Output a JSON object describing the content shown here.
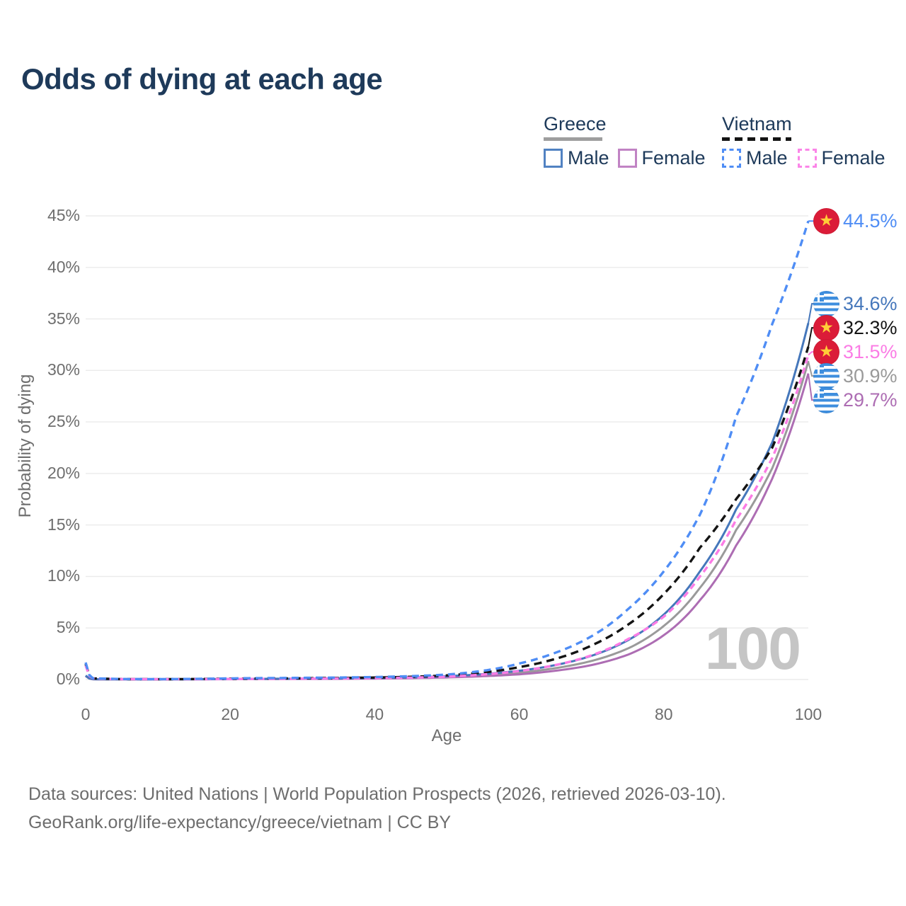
{
  "header": {
    "title": "Odds of dying at each age"
  },
  "legend": {
    "groups": [
      {
        "country": "Greece",
        "style": "solid",
        "line_color": "#9e9e9e",
        "items": [
          {
            "label": "Male",
            "color": "#5182c2"
          },
          {
            "label": "Female",
            "color": "#c183c4"
          }
        ]
      },
      {
        "country": "Vietnam",
        "style": "dashed",
        "line_color": "#141414",
        "items": [
          {
            "label": "Male",
            "color": "#4f8df5"
          },
          {
            "label": "Female",
            "color": "#fb85e8"
          }
        ]
      }
    ]
  },
  "chart_data": {
    "type": "line",
    "title": "Odds of dying at each age",
    "xlabel": "Age",
    "ylabel": "Probability of dying",
    "xlim": [
      0,
      100
    ],
    "ylim": [
      0,
      45
    ],
    "grid": "horizontal",
    "legend_position": "top-right",
    "age_counter": "100",
    "x_ticks": [
      {
        "v": 0,
        "label": "0"
      },
      {
        "v": 20,
        "label": "20"
      },
      {
        "v": 40,
        "label": "40"
      },
      {
        "v": 60,
        "label": "60"
      },
      {
        "v": 80,
        "label": "80"
      },
      {
        "v": 100,
        "label": "100"
      }
    ],
    "y_ticks": [
      {
        "v": 0,
        "label": "0%"
      },
      {
        "v": 5,
        "label": "5%"
      },
      {
        "v": 10,
        "label": "10%"
      },
      {
        "v": 15,
        "label": "15%"
      },
      {
        "v": 20,
        "label": "20%"
      },
      {
        "v": 25,
        "label": "25%"
      },
      {
        "v": 30,
        "label": "30%"
      },
      {
        "v": 35,
        "label": "35%"
      },
      {
        "v": 40,
        "label": "40%"
      },
      {
        "v": 45,
        "label": "45%"
      }
    ],
    "series": [
      {
        "id": "vietnam-male",
        "country": "Vietnam",
        "sex": "Male",
        "flag": "vn",
        "color": "#4f8df5",
        "dash": "10 7",
        "width": 3.4,
        "end_label": "44.5%",
        "points": [
          [
            0,
            1.65
          ],
          [
            1,
            0.12
          ],
          [
            5,
            0.05
          ],
          [
            10,
            0.04
          ],
          [
            15,
            0.06
          ],
          [
            20,
            0.11
          ],
          [
            25,
            0.14
          ],
          [
            30,
            0.16
          ],
          [
            35,
            0.19
          ],
          [
            40,
            0.24
          ],
          [
            45,
            0.32
          ],
          [
            50,
            0.48
          ],
          [
            55,
            0.85
          ],
          [
            60,
            1.55
          ],
          [
            65,
            2.6
          ],
          [
            70,
            4.2
          ],
          [
            75,
            6.8
          ],
          [
            80,
            10.5
          ],
          [
            85,
            16.0
          ],
          [
            90,
            25.5
          ],
          [
            95,
            34.5
          ],
          [
            100,
            44.5
          ]
        ]
      },
      {
        "id": "greece-male",
        "country": "Greece",
        "sex": "Male",
        "flag": "gr",
        "color": "#4577bb",
        "dash": null,
        "width": 3,
        "end_label": "34.6%",
        "points": [
          [
            0,
            0.38
          ],
          [
            1,
            0.03
          ],
          [
            5,
            0.012
          ],
          [
            10,
            0.012
          ],
          [
            15,
            0.03
          ],
          [
            20,
            0.06
          ],
          [
            25,
            0.07
          ],
          [
            30,
            0.08
          ],
          [
            35,
            0.1
          ],
          [
            40,
            0.14
          ],
          [
            45,
            0.21
          ],
          [
            50,
            0.33
          ],
          [
            55,
            0.52
          ],
          [
            60,
            0.85
          ],
          [
            65,
            1.4
          ],
          [
            70,
            2.3
          ],
          [
            75,
            3.8
          ],
          [
            80,
            6.3
          ],
          [
            85,
            10.5
          ],
          [
            90,
            16.5
          ],
          [
            95,
            23.0
          ],
          [
            100,
            34.6
          ]
        ]
      },
      {
        "id": "vietnam-total",
        "country": "Vietnam",
        "sex": "Both",
        "flag": "vn",
        "color": "#141414",
        "dash": "11 7",
        "width": 3.4,
        "end_label": "32.3%",
        "points": [
          [
            0,
            1.5
          ],
          [
            1,
            0.11
          ],
          [
            5,
            0.04
          ],
          [
            10,
            0.03
          ],
          [
            15,
            0.05
          ],
          [
            20,
            0.08
          ],
          [
            25,
            0.1
          ],
          [
            30,
            0.12
          ],
          [
            35,
            0.15
          ],
          [
            40,
            0.19
          ],
          [
            45,
            0.26
          ],
          [
            50,
            0.4
          ],
          [
            55,
            0.68
          ],
          [
            60,
            1.2
          ],
          [
            65,
            2.0
          ],
          [
            70,
            3.3
          ],
          [
            75,
            5.3
          ],
          [
            80,
            8.3
          ],
          [
            85,
            12.8
          ],
          [
            90,
            17.5
          ],
          [
            95,
            22.5
          ],
          [
            100,
            32.3
          ]
        ]
      },
      {
        "id": "vietnam-female",
        "country": "Vietnam",
        "sex": "Female",
        "flag": "vn",
        "color": "#fb7ce5",
        "dash": "9 6",
        "width": 3.4,
        "end_label": "31.5%",
        "points": [
          [
            0,
            1.35
          ],
          [
            1,
            0.1
          ],
          [
            5,
            0.035
          ],
          [
            10,
            0.025
          ],
          [
            15,
            0.035
          ],
          [
            20,
            0.05
          ],
          [
            25,
            0.06
          ],
          [
            30,
            0.08
          ],
          [
            35,
            0.1
          ],
          [
            40,
            0.13
          ],
          [
            45,
            0.18
          ],
          [
            50,
            0.28
          ],
          [
            55,
            0.48
          ],
          [
            60,
            0.82
          ],
          [
            65,
            1.4
          ],
          [
            70,
            2.35
          ],
          [
            75,
            3.9
          ],
          [
            80,
            6.1
          ],
          [
            85,
            10.0
          ],
          [
            90,
            15.5
          ],
          [
            95,
            21.5
          ],
          [
            100,
            31.5
          ]
        ]
      },
      {
        "id": "greece-total",
        "country": "Greece",
        "sex": "Both",
        "flag": "gr",
        "color": "#9a9a9a",
        "dash": null,
        "width": 3,
        "end_label": "30.9%",
        "points": [
          [
            0,
            0.36
          ],
          [
            1,
            0.028
          ],
          [
            5,
            0.01
          ],
          [
            10,
            0.01
          ],
          [
            15,
            0.025
          ],
          [
            20,
            0.045
          ],
          [
            25,
            0.055
          ],
          [
            30,
            0.065
          ],
          [
            35,
            0.085
          ],
          [
            40,
            0.115
          ],
          [
            45,
            0.17
          ],
          [
            50,
            0.26
          ],
          [
            55,
            0.42
          ],
          [
            60,
            0.66
          ],
          [
            65,
            1.1
          ],
          [
            70,
            1.8
          ],
          [
            75,
            3.0
          ],
          [
            80,
            5.2
          ],
          [
            85,
            8.9
          ],
          [
            90,
            14.5
          ],
          [
            95,
            20.5
          ],
          [
            100,
            30.9
          ]
        ]
      },
      {
        "id": "greece-female",
        "country": "Greece",
        "sex": "Female",
        "flag": "gr",
        "color": "#ad6db3",
        "dash": null,
        "width": 3,
        "end_label": "29.7%",
        "points": [
          [
            0,
            0.33
          ],
          [
            1,
            0.025
          ],
          [
            5,
            0.01
          ],
          [
            10,
            0.009
          ],
          [
            15,
            0.02
          ],
          [
            20,
            0.03
          ],
          [
            25,
            0.04
          ],
          [
            30,
            0.05
          ],
          [
            35,
            0.065
          ],
          [
            40,
            0.09
          ],
          [
            45,
            0.13
          ],
          [
            50,
            0.2
          ],
          [
            55,
            0.32
          ],
          [
            60,
            0.5
          ],
          [
            65,
            0.85
          ],
          [
            70,
            1.4
          ],
          [
            75,
            2.4
          ],
          [
            80,
            4.3
          ],
          [
            85,
            7.7
          ],
          [
            90,
            13.0
          ],
          [
            95,
            19.5
          ],
          [
            100,
            29.7
          ]
        ]
      }
    ]
  },
  "footer": {
    "line1": "Data sources: United Nations | World Population Prospects (2026, retrieved 2026-03-10).",
    "line2": "GeoRank.org/life-expectancy/greece/vietnam | CC BY"
  }
}
